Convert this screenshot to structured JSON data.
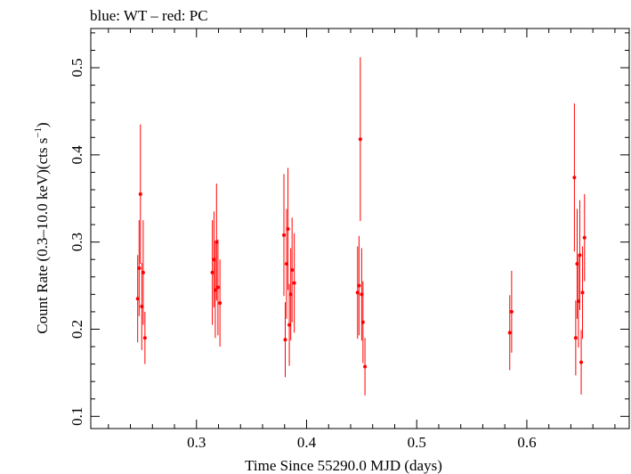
{
  "chart_data": {
    "type": "scatter",
    "title": "blue: WT – red: PC",
    "xlabel": "Time Since 55290.0 MJD (days)",
    "ylabel_main": "Count Rate (0.3–10.0 keV)(cts s",
    "ylabel_sup": "−1",
    "ylabel_end": ")",
    "xlim": [
      0.204,
      0.693
    ],
    "ylim": [
      0.086,
      0.545
    ],
    "xticks_major": [
      0.3,
      0.4,
      0.5,
      0.6
    ],
    "xtick_labels": [
      "0.3",
      "0.4",
      "0.5",
      "0.6"
    ],
    "yticks_major": [
      0.1,
      0.2,
      0.3,
      0.4,
      0.5
    ],
    "ytick_labels": [
      "0.1",
      "0.2",
      "0.3",
      "0.4",
      "0.5"
    ],
    "grid": false,
    "colors": {
      "PC": "#ff0000",
      "WT": "#0000ff",
      "frame": "#000000"
    },
    "series": [
      {
        "name": "PC",
        "color": "#ff0000",
        "points": [
          {
            "x": 0.2466,
            "y": 0.235,
            "err": 0.05
          },
          {
            "x": 0.2479,
            "y": 0.27,
            "err": 0.055
          },
          {
            "x": 0.2491,
            "y": 0.355,
            "err": 0.08
          },
          {
            "x": 0.2503,
            "y": 0.226,
            "err": 0.05
          },
          {
            "x": 0.2516,
            "y": 0.265,
            "err": 0.06
          },
          {
            "x": 0.2532,
            "y": 0.19,
            "err": 0.03
          },
          {
            "x": 0.3144,
            "y": 0.265,
            "err": 0.06
          },
          {
            "x": 0.3159,
            "y": 0.28,
            "err": 0.055
          },
          {
            "x": 0.3171,
            "y": 0.245,
            "err": 0.055
          },
          {
            "x": 0.3182,
            "y": 0.3,
            "err": 0.067
          },
          {
            "x": 0.3195,
            "y": 0.248,
            "err": 0.055
          },
          {
            "x": 0.3213,
            "y": 0.23,
            "err": 0.05
          },
          {
            "x": 0.3794,
            "y": 0.308,
            "err": 0.07
          },
          {
            "x": 0.3806,
            "y": 0.188,
            "err": 0.043
          },
          {
            "x": 0.3818,
            "y": 0.275,
            "err": 0.063
          },
          {
            "x": 0.3831,
            "y": 0.315,
            "err": 0.07
          },
          {
            "x": 0.3843,
            "y": 0.205,
            "err": 0.047
          },
          {
            "x": 0.3856,
            "y": 0.24,
            "err": 0.053
          },
          {
            "x": 0.3868,
            "y": 0.268,
            "err": 0.06
          },
          {
            "x": 0.3888,
            "y": 0.253,
            "err": 0.057
          },
          {
            "x": 0.4463,
            "y": 0.242,
            "err": 0.053
          },
          {
            "x": 0.4476,
            "y": 0.25,
            "err": 0.057
          },
          {
            "x": 0.4488,
            "y": 0.418,
            "err": 0.094
          },
          {
            "x": 0.45,
            "y": 0.24,
            "err": 0.053
          },
          {
            "x": 0.4512,
            "y": 0.208,
            "err": 0.047
          },
          {
            "x": 0.453,
            "y": 0.157,
            "err": 0.033
          },
          {
            "x": 0.5845,
            "y": 0.196,
            "err": 0.043
          },
          {
            "x": 0.5862,
            "y": 0.22,
            "err": 0.047
          },
          {
            "x": 0.6432,
            "y": 0.374,
            "err": 0.085
          },
          {
            "x": 0.6444,
            "y": 0.19,
            "err": 0.043
          },
          {
            "x": 0.6457,
            "y": 0.275,
            "err": 0.063
          },
          {
            "x": 0.6469,
            "y": 0.232,
            "err": 0.053
          },
          {
            "x": 0.6481,
            "y": 0.285,
            "err": 0.063
          },
          {
            "x": 0.6494,
            "y": 0.162,
            "err": 0.037
          },
          {
            "x": 0.6506,
            "y": 0.242,
            "err": 0.053
          },
          {
            "x": 0.6524,
            "y": 0.305,
            "err": 0.05
          }
        ]
      }
    ]
  }
}
